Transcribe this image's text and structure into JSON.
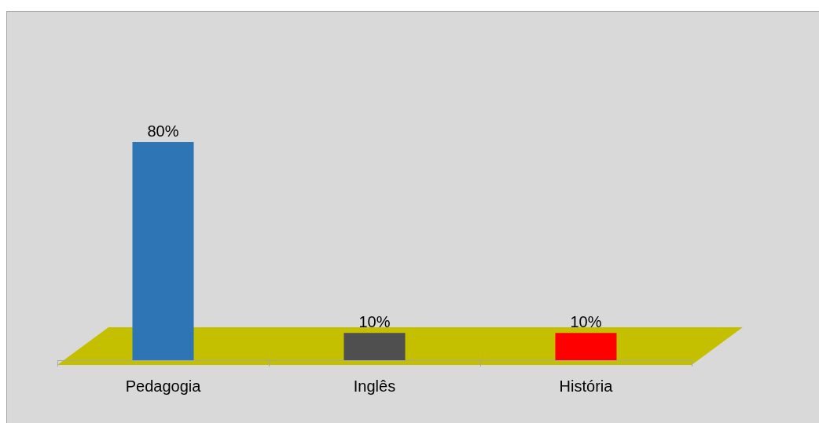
{
  "chart_data": {
    "type": "bar",
    "categories": [
      "Pedagogia",
      "Inglês",
      "História"
    ],
    "values": [
      80,
      10,
      10
    ],
    "colors": [
      "#2e75b6",
      "#4f4f4f",
      "#ff0000"
    ],
    "value_labels": [
      "80%",
      "10%",
      "10%"
    ],
    "legend": false,
    "grid": false
  }
}
